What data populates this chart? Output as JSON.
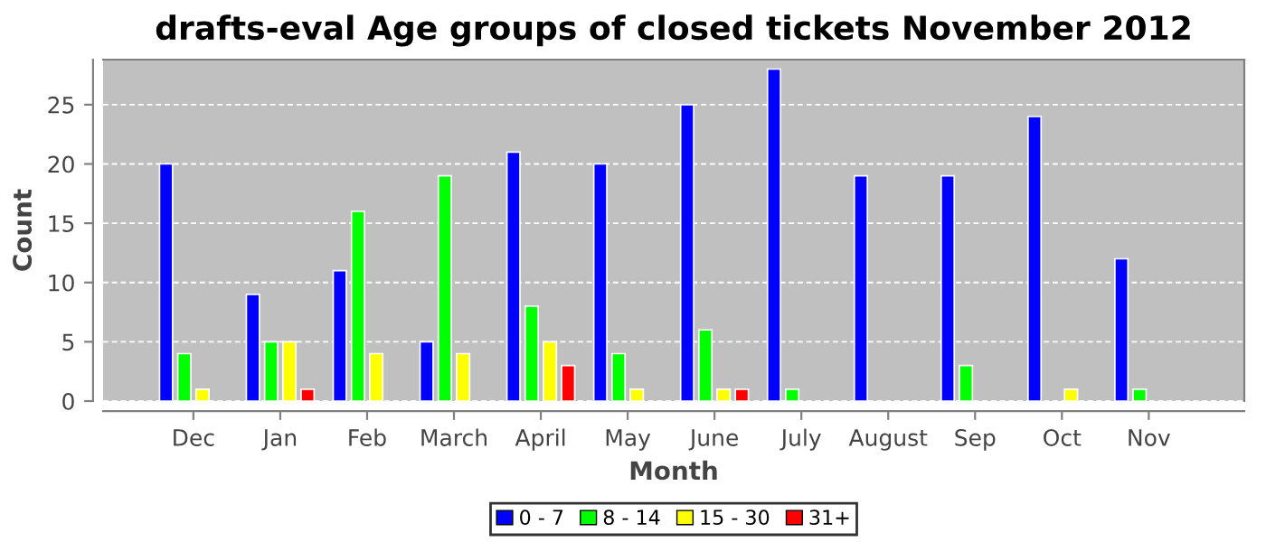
{
  "chart_data": {
    "type": "bar",
    "title": "drafts-eval Age groups of closed tickets November 2012",
    "xlabel": "Month",
    "ylabel": "Count",
    "categories": [
      "Dec",
      "Jan",
      "Feb",
      "March",
      "April",
      "May",
      "June",
      "July",
      "August",
      "Sep",
      "Oct",
      "Nov"
    ],
    "series": [
      {
        "name": "0 - 7",
        "color": "#0000ff",
        "values": [
          20,
          9,
          11,
          5,
          21,
          20,
          25,
          28,
          19,
          19,
          24,
          12
        ]
      },
      {
        "name": "8 - 14",
        "color": "#00ff00",
        "values": [
          4,
          5,
          16,
          19,
          8,
          4,
          6,
          1,
          0,
          3,
          0,
          1
        ]
      },
      {
        "name": "15 - 30",
        "color": "#ffff00",
        "values": [
          1,
          5,
          4,
          4,
          5,
          1,
          1,
          0,
          0,
          0,
          1,
          0
        ]
      },
      {
        "name": "31+",
        "color": "#ff0000",
        "values": [
          0,
          1,
          0,
          0,
          3,
          0,
          1,
          0,
          0,
          0,
          0,
          0
        ]
      }
    ],
    "ylim": [
      0,
      28.8
    ],
    "yticks": [
      0,
      5,
      10,
      15,
      20,
      25
    ],
    "grid": "y",
    "legend": "bottom"
  }
}
